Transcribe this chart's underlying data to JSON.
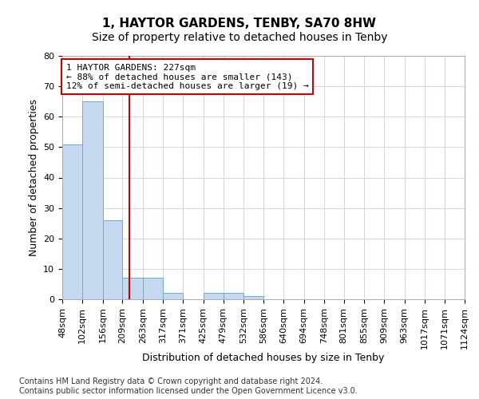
{
  "title": "1, HAYTOR GARDENS, TENBY, SA70 8HW",
  "subtitle": "Size of property relative to detached houses in Tenby",
  "xlabel": "Distribution of detached houses by size in Tenby",
  "ylabel": "Number of detached properties",
  "bar_color": "#c5d8f0",
  "bar_edge_color": "#6aaad4",
  "bin_edges": [
    48,
    102,
    156,
    209,
    263,
    317,
    371,
    425,
    479,
    532,
    586,
    640,
    694,
    748,
    801,
    855,
    909,
    963,
    1017,
    1071,
    1124
  ],
  "bin_labels": [
    "48sqm",
    "102sqm",
    "156sqm",
    "209sqm",
    "263sqm",
    "317sqm",
    "371sqm",
    "425sqm",
    "479sqm",
    "532sqm",
    "586sqm",
    "640sqm",
    "694sqm",
    "748sqm",
    "801sqm",
    "855sqm",
    "909sqm",
    "963sqm",
    "1017sqm",
    "1071sqm",
    "1124sqm"
  ],
  "counts": [
    51,
    65,
    26,
    7,
    7,
    2,
    0,
    2,
    2,
    1,
    0,
    0,
    0,
    0,
    0,
    0,
    0,
    0,
    0,
    0
  ],
  "property_size": 227,
  "red_line_color": "#cc0000",
  "annotation_text": "1 HAYTOR GARDENS: 227sqm\n← 88% of detached houses are smaller (143)\n12% of semi-detached houses are larger (19) →",
  "annotation_box_color": "#ffffff",
  "annotation_box_edge_color": "#cc0000",
  "ylim": [
    0,
    80
  ],
  "yticks": [
    0,
    10,
    20,
    30,
    40,
    50,
    60,
    70,
    80
  ],
  "grid_color": "#d0d8e8",
  "footer_text": "Contains HM Land Registry data © Crown copyright and database right 2024.\nContains public sector information licensed under the Open Government Licence v3.0.",
  "title_fontsize": 11,
  "subtitle_fontsize": 10,
  "xlabel_fontsize": 9,
  "ylabel_fontsize": 9,
  "tick_fontsize": 8,
  "annotation_fontsize": 8,
  "footer_fontsize": 7
}
